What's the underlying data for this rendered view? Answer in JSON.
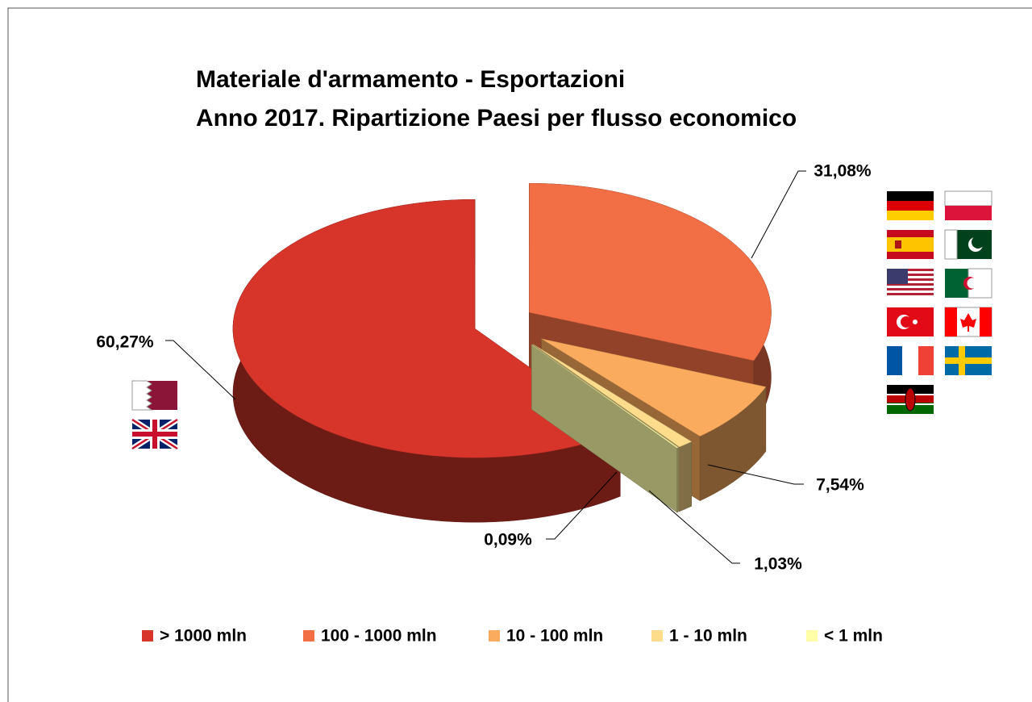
{
  "chart_data": {
    "type": "pie3d",
    "title": [
      "Materiale d'armamento  - Esportazioni",
      "Anno 2017. Ripartizione Paesi per flusso economico"
    ],
    "categories": [
      "> 1000 mln",
      "100 - 1000 mln",
      "10 - 100 mln",
      "1 - 10 mln",
      "< 1 mln"
    ],
    "values": [
      60.27,
      31.08,
      7.54,
      1.03,
      0.09
    ],
    "value_labels": [
      "60,27%",
      "31,08%",
      "7,54%",
      "1,03%",
      "0,09%"
    ],
    "colors": [
      "#d7352a",
      "#f26e45",
      "#fbab5e",
      "#fddc8c",
      "#ffffa8"
    ],
    "legend": "bottom"
  }
}
